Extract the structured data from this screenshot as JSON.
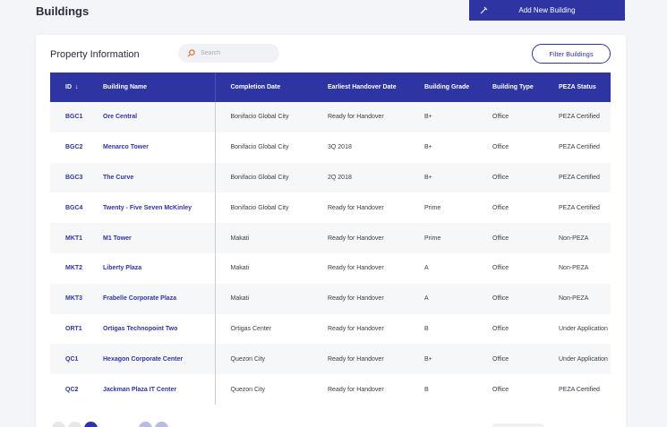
{
  "page": {
    "title": "Buildings",
    "add_button_label": "Add New Building"
  },
  "card": {
    "title": "Property Information",
    "search_placeholder": "Search",
    "filter_label": "Filter Buildings"
  },
  "table": {
    "headers": {
      "id": "ID",
      "name": "Building Name",
      "completion": "Completion Date",
      "handover": "Earliest Handover Date",
      "grade": "Building Grade",
      "type": "Building Type",
      "peza": "PEZA Status"
    },
    "rows": [
      {
        "id": "BGC1",
        "name": "Ore Central",
        "location": "Bonifacio Global City",
        "handover": "Ready for Handover",
        "grade": "B+",
        "type": "Office",
        "peza": "PEZA Certified"
      },
      {
        "id": "BGC2",
        "name": "Menarco Tower",
        "location": "Bonifacio Global City",
        "handover": "3Q 2018",
        "grade": "B+",
        "type": "Office",
        "peza": "PEZA Certified"
      },
      {
        "id": "BGC3",
        "name": "The Curve",
        "location": "Bonifacio Global City",
        "handover": "2Q 2018",
        "grade": "B+",
        "type": "Office",
        "peza": "PEZA Certified"
      },
      {
        "id": "BGC4",
        "name": "Twenty - Five Seven McKinley",
        "location": "Bonifacio Global City",
        "handover": "Ready for Handover",
        "grade": "Prime",
        "type": "Office",
        "peza": "PEZA Certified"
      },
      {
        "id": "MKT1",
        "name": "M1 Tower",
        "location": "Makati",
        "handover": "Ready for Handover",
        "grade": "Prime",
        "type": "Office",
        "peza": "Non-PEZA"
      },
      {
        "id": "MKT2",
        "name": "Liberty Plaza",
        "location": "Makati",
        "handover": "Ready for Handover",
        "grade": "A",
        "type": "Office",
        "peza": "Non-PEZA"
      },
      {
        "id": "MKT3",
        "name": "Frabelle Corporate Plaza",
        "location": "Makati",
        "handover": "Ready for Handover",
        "grade": "A",
        "type": "Office",
        "peza": "Non-PEZA"
      },
      {
        "id": "ORT1",
        "name": "Ortigas Technopoint Two",
        "location": "Ortigas Center",
        "handover": "Ready for Handover",
        "grade": "B",
        "type": "Office",
        "peza": "Under Application"
      },
      {
        "id": "QC1",
        "name": "Hexagon Corporate Center",
        "location": "Quezon City",
        "handover": "Ready for Handover",
        "grade": "B+",
        "type": "Office",
        "peza": "Under Application"
      },
      {
        "id": "QC2",
        "name": "Jackman Plaza IT Center",
        "location": "Quezon City",
        "handover": "Ready for Handover",
        "grade": "B",
        "type": "Office",
        "peza": "PEZA Certified"
      }
    ]
  },
  "colors": {
    "accent": "#2e35a3",
    "search_icon": "#e8612c"
  },
  "icons": {
    "add": "building-add-icon",
    "search": "search-icon",
    "sort": "arrow-down-icon"
  }
}
